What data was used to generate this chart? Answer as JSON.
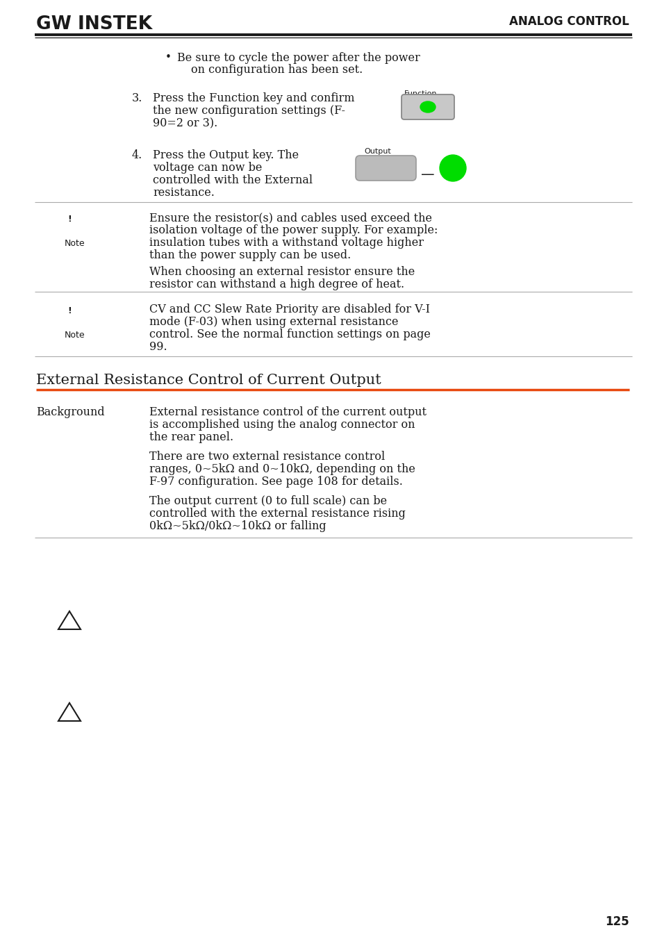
{
  "bg_color": "#ffffff",
  "text_color": "#1a1a1a",
  "header_logo_text": "GW INSTEK",
  "header_right_text": "ANALOG CONTROL",
  "page_number": "125",
  "orange_line_color": "#e8490f",
  "gray_line_color": "#aaaaaa",
  "dark_line_color": "#1a1a1a",
  "green_color": "#00dd00",
  "gray_button_color": "#bbbbbb",
  "section_title": "External Resistance Control of Current Output",
  "background_label": "Background",
  "background_text1_l1": "External resistance control of the current output",
  "background_text1_l2": "is accomplished using the analog connector on",
  "background_text1_l3": "the rear panel.",
  "background_text2_l1": "There are two external resistance control",
  "background_text2_l2": "ranges, 0~5kΩ and 0~10kΩ, depending on the",
  "background_text2_l3": "F-97 configuration. See page 108 for details.",
  "background_text3_l1": "The output current (0 to full scale) can be",
  "background_text3_l2": "controlled with the external resistance rising",
  "background_text3_l3": "0kΩ~5kΩ/0kΩ~10kΩ or falling",
  "main_font": "DejaVu Serif",
  "mono_font": "DejaVu Sans Mono",
  "sans_font": "DejaVu Sans"
}
